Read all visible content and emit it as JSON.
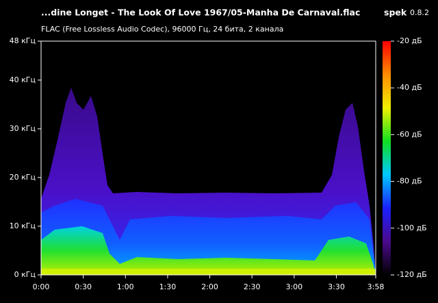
{
  "chart_data": {
    "type": "spectrogram",
    "title": "...dine Longet - The Look Of Love 1967/05-Manha De Carnaval.flac",
    "app_name": "spek",
    "app_version": "0.8.2",
    "subtitle": "FLAC (Free Lossless Audio Codec), 96000 Гц, 24 бита, 2 канала",
    "xlim": [
      0,
      238
    ],
    "xticks": [
      {
        "value": 0,
        "label": "0:00"
      },
      {
        "value": 30,
        "label": "0:30"
      },
      {
        "value": 60,
        "label": "1:00"
      },
      {
        "value": 90,
        "label": "1:30"
      },
      {
        "value": 120,
        "label": "2:00"
      },
      {
        "value": 150,
        "label": "2:30"
      },
      {
        "value": 180,
        "label": "3:00"
      },
      {
        "value": 210,
        "label": "3:30"
      },
      {
        "value": 238,
        "label": "3:58"
      }
    ],
    "ylim": [
      0,
      48
    ],
    "yticks": [
      {
        "value": 0,
        "label": "0 кГц"
      },
      {
        "value": 10,
        "label": "10 кГц"
      },
      {
        "value": 20,
        "label": "20 кГц"
      },
      {
        "value": 30,
        "label": "30 кГц"
      },
      {
        "value": 40,
        "label": "40 кГц"
      },
      {
        "value": 48,
        "label": "48 кГц"
      }
    ],
    "zlim": [
      -120,
      -20
    ],
    "zticks": [
      {
        "value": -20,
        "label": "-20 дБ"
      },
      {
        "value": -40,
        "label": "-40 дБ"
      },
      {
        "value": -60,
        "label": "-60 дБ"
      },
      {
        "value": -80,
        "label": "-80 дБ"
      },
      {
        "value": -100,
        "label": "-100 дБ"
      },
      {
        "value": -120,
        "label": "-120 дБ"
      }
    ],
    "colormap": [
      "#000000",
      "#4b0a8c",
      "#1a20ff",
      "#00c8ff",
      "#10e020",
      "#f0f000",
      "#ff8c00",
      "#ff0000"
    ]
  }
}
